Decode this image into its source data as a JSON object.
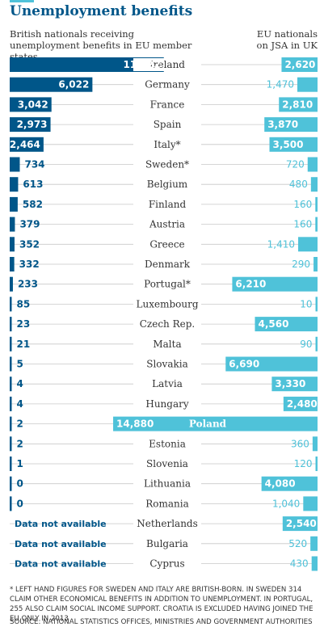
{
  "header": {
    "title": "Unemployment benefits",
    "left_caption": "British nationals receiving unemployment benefits in EU member states",
    "right_caption": "EU nationals on JSA in UK"
  },
  "colors": {
    "left_bar": "#005689",
    "right_bar": "#4fc2d9",
    "left_text": "#005689",
    "right_text": "#4fc2d9",
    "divider": "#c8c8c8"
  },
  "footnote": "* LEFT HAND FIGURES FOR SWEDEN AND ITALY ARE BRITISH-BORN. IN SWEDEN 314 CLAIM OTHER ECONOMICAL BENEFITS IN ADDITION TO UNEMPLOYMENT. IN PORTUGAL, 255 ALSO CLAIM SOCIAL INCOME SUPPORT. CROATIA IS EXCLUDED HAVING JOINED THE EU ONLY IN 2013",
  "source": "SOURCE: NATIONAL STATISTICS OFFICES, MINISTRIES AND GOVERNMENT AUTHORITIES",
  "chart_data": {
    "type": "bar",
    "title": "Unemployment benefits",
    "categories": [
      "Ireland",
      "Germany",
      "France",
      "Spain",
      "Italy*",
      "Sweden*",
      "Belgium",
      "Finland",
      "Austria",
      "Greece",
      "Denmark",
      "Portugal*",
      "Luxembourg",
      "Czech Rep.",
      "Malta",
      "Slovakia",
      "Latvia",
      "Hungary",
      "Poland",
      "Estonia",
      "Slovenia",
      "Lithuania",
      "Romania",
      "Netherlands",
      "Bulgaria",
      "Cyprus"
    ],
    "series": [
      {
        "name": "British nationals receiving unemployment benefits in EU member states",
        "values": [
          11222,
          6022,
          3042,
          2973,
          2464,
          734,
          613,
          582,
          379,
          352,
          332,
          233,
          85,
          23,
          21,
          5,
          4,
          4,
          2,
          2,
          1,
          0,
          0,
          null,
          null,
          null
        ],
        "labels": [
          "11,222",
          "6,022",
          "3,042",
          "2,973",
          "2,464",
          "734",
          "613",
          "582",
          "379",
          "352",
          "332",
          "233",
          "85",
          "23",
          "21",
          "5",
          "4",
          "4",
          "2",
          "2",
          "1",
          "0",
          "0",
          "Data not available",
          "Data not available",
          "Data not available"
        ]
      },
      {
        "name": "EU nationals on JSA in UK",
        "values": [
          2620,
          1470,
          2810,
          3870,
          3500,
          720,
          480,
          160,
          160,
          1410,
          290,
          6210,
          10,
          4560,
          90,
          6690,
          3330,
          2480,
          14880,
          360,
          120,
          4080,
          1040,
          2540,
          520,
          430
        ],
        "labels": [
          "2,620",
          "1,470",
          "2,810",
          "3,870",
          "3,500",
          "720",
          "480",
          "160",
          "160",
          "1,410",
          "290",
          "6,210",
          "10",
          "4,560",
          "90",
          "6,690",
          "3,330",
          "2,480",
          "14,880",
          "360",
          "120",
          "4,080",
          "1,040",
          "2,540",
          "520",
          "430"
        ]
      }
    ],
    "ylim": [
      0,
      15000
    ]
  }
}
